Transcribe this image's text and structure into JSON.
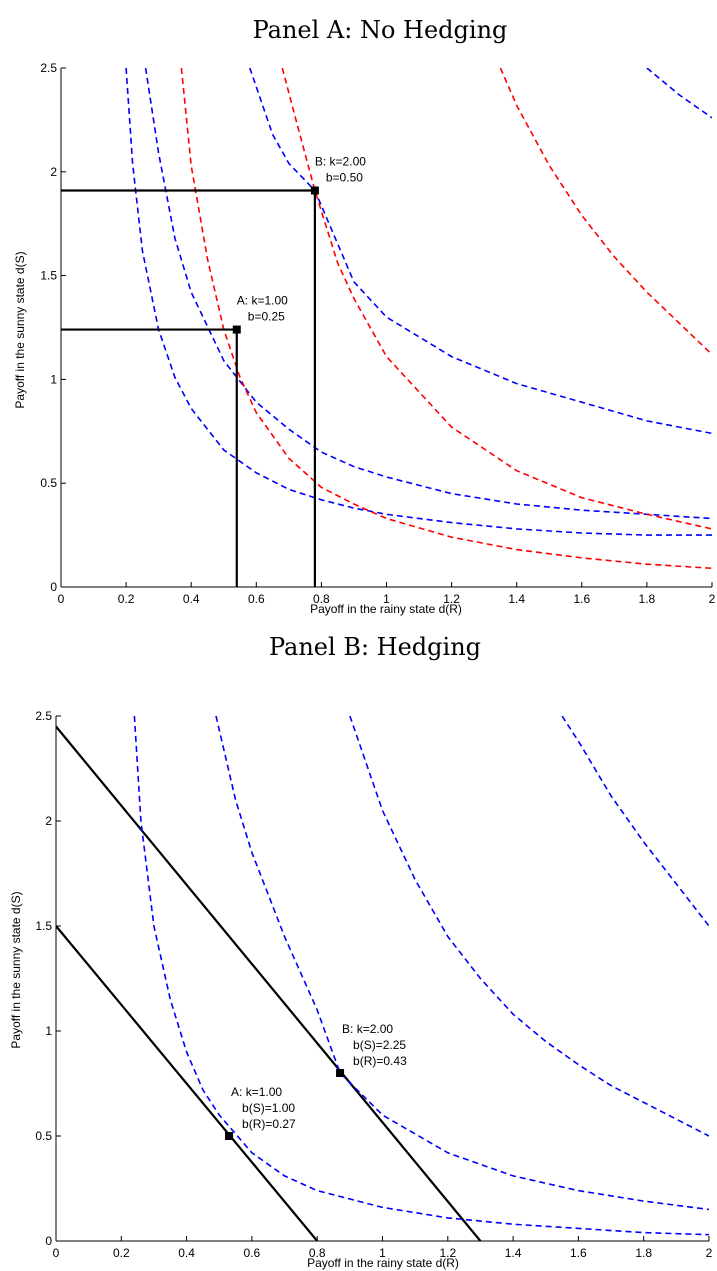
{
  "chart_data": [
    {
      "type": "line",
      "title": "Panel A: No Hedging",
      "xlabel": "Payoff in the rainy state d(R)",
      "ylabel": "Payoff in the sunny state d(S)",
      "xlim": [
        0,
        2
      ],
      "ylim": [
        0,
        2.5
      ],
      "xticks": [
        "0",
        "0.2",
        "0.4",
        "0.6",
        "0.8",
        "1",
        "1.2",
        "1.4",
        "1.6",
        "1.8",
        "2"
      ],
      "yticks": [
        "0",
        "0.5",
        "1",
        "1.5",
        "2",
        "2.5"
      ],
      "grid": false,
      "series": [
        {
          "color": "#0000ff",
          "style": "dashed",
          "x": [
            0.2,
            0.22,
            0.25,
            0.3,
            0.35,
            0.4,
            0.5,
            0.6,
            0.7,
            0.8,
            0.9,
            1.0,
            1.2,
            1.4,
            1.6,
            1.8,
            2.0
          ],
          "y": [
            2.5,
            2.04,
            1.62,
            1.24,
            1.01,
            0.86,
            0.66,
            0.55,
            0.47,
            0.42,
            0.38,
            0.35,
            0.31,
            0.28,
            0.26,
            0.25,
            0.25
          ]
        },
        {
          "color": "#0000ff",
          "style": "dashed",
          "x": [
            0.26,
            0.3,
            0.35,
            0.4,
            0.5,
            0.6,
            0.7,
            0.8,
            0.9,
            1.0,
            1.2,
            1.4,
            1.6,
            1.8,
            2.0
          ],
          "y": [
            2.5,
            2.09,
            1.68,
            1.42,
            1.09,
            0.89,
            0.76,
            0.65,
            0.58,
            0.53,
            0.45,
            0.4,
            0.37,
            0.35,
            0.33
          ]
        },
        {
          "color": "#0000ff",
          "style": "dashed",
          "x": [
            0.58,
            0.65,
            0.7,
            0.78,
            0.9,
            1.0,
            1.2,
            1.4,
            1.6,
            1.8,
            2.0
          ],
          "y": [
            2.5,
            2.18,
            2.04,
            1.91,
            1.47,
            1.3,
            1.11,
            0.98,
            0.89,
            0.8,
            0.74
          ]
        },
        {
          "color": "#0000ff",
          "style": "dashed",
          "x": [
            1.8,
            1.9,
            2.0
          ],
          "y": [
            2.5,
            2.37,
            2.26
          ]
        },
        {
          "color": "#ff0000",
          "style": "dashed",
          "x": [
            0.37,
            0.4,
            0.45,
            0.5,
            0.55,
            0.6,
            0.7,
            0.8,
            0.9,
            1.0,
            1.2,
            1.4,
            1.6,
            1.8,
            2.0
          ],
          "y": [
            2.5,
            2.03,
            1.58,
            1.24,
            1.01,
            0.84,
            0.62,
            0.48,
            0.4,
            0.33,
            0.24,
            0.18,
            0.14,
            0.11,
            0.09
          ]
        },
        {
          "color": "#ff0000",
          "style": "dashed",
          "x": [
            0.68,
            0.72,
            0.78,
            0.85,
            0.9,
            1.0,
            1.2,
            1.4,
            1.6,
            1.8,
            2.0
          ],
          "y": [
            2.5,
            2.26,
            1.91,
            1.56,
            1.39,
            1.11,
            0.77,
            0.56,
            0.43,
            0.35,
            0.28
          ]
        },
        {
          "color": "#ff0000",
          "style": "dashed",
          "x": [
            1.35,
            1.4,
            1.5,
            1.6,
            1.7,
            1.8,
            1.9,
            2.0
          ],
          "y": [
            2.5,
            2.32,
            2.03,
            1.79,
            1.59,
            1.42,
            1.27,
            1.12
          ]
        }
      ],
      "points": [
        {
          "label": [
            "A: k=1.00",
            "b=0.25"
          ],
          "x": 0.54,
          "y": 1.24
        },
        {
          "label": [
            "B: k=2.00",
            "b=0.50"
          ],
          "x": 0.78,
          "y": 1.91
        }
      ]
    },
    {
      "type": "line",
      "title": "Panel B: Hedging",
      "xlabel": "Payoff in the rainy state d(R)",
      "ylabel": "Payoff in the sunny state d(S)",
      "xlim": [
        0,
        2
      ],
      "ylim": [
        0,
        2.5
      ],
      "xticks": [
        "0",
        "0.2",
        "0.4",
        "0.6",
        "0.8",
        "1",
        "1.2",
        "1.4",
        "1.6",
        "1.8",
        "2"
      ],
      "yticks": [
        "0",
        "0.5",
        "1",
        "1.5",
        "2",
        "2.5"
      ],
      "grid": false,
      "series": [
        {
          "color": "#000000",
          "style": "solid",
          "x": [
            0,
            0.8
          ],
          "y": [
            1.5,
            0
          ]
        },
        {
          "color": "#000000",
          "style": "solid",
          "x": [
            0,
            1.3
          ],
          "y": [
            2.45,
            0
          ]
        },
        {
          "color": "#0000ff",
          "style": "dashed",
          "x": [
            0.24,
            0.26,
            0.3,
            0.35,
            0.4,
            0.45,
            0.5,
            0.6,
            0.7,
            0.8,
            1.0,
            1.2,
            1.4,
            1.6,
            1.8,
            2.0
          ],
          "y": [
            2.5,
            2.0,
            1.5,
            1.15,
            0.9,
            0.72,
            0.6,
            0.42,
            0.31,
            0.24,
            0.16,
            0.11,
            0.08,
            0.06,
            0.04,
            0.03
          ]
        },
        {
          "color": "#0000ff",
          "style": "dashed",
          "x": [
            0.49,
            0.55,
            0.6,
            0.7,
            0.8,
            0.87,
            1.0,
            1.2,
            1.4,
            1.6,
            1.8,
            2.0
          ],
          "y": [
            2.5,
            2.1,
            1.85,
            1.45,
            1.1,
            0.8,
            0.6,
            0.42,
            0.31,
            0.24,
            0.19,
            0.15
          ]
        },
        {
          "color": "#0000ff",
          "style": "dashed",
          "x": [
            0.9,
            1.0,
            1.1,
            1.2,
            1.3,
            1.4,
            1.5,
            1.6,
            1.7,
            1.8,
            1.9,
            2.0
          ],
          "y": [
            2.5,
            2.05,
            1.72,
            1.45,
            1.25,
            1.08,
            0.95,
            0.84,
            0.74,
            0.66,
            0.58,
            0.5
          ]
        },
        {
          "color": "#0000ff",
          "style": "dashed",
          "x": [
            1.55,
            1.6,
            1.7,
            1.8,
            1.9,
            2.0
          ],
          "y": [
            2.5,
            2.38,
            2.12,
            1.9,
            1.7,
            1.5
          ]
        }
      ],
      "points": [
        {
          "label": [
            "A: k=1.00",
            "b(S)=1.00",
            "b(R)=0.27"
          ],
          "x": 0.53,
          "y": 0.5
        },
        {
          "label": [
            "B: k=2.00",
            "b(S)=2.25",
            "b(R)=0.43"
          ],
          "x": 0.87,
          "y": 0.8
        }
      ]
    }
  ]
}
